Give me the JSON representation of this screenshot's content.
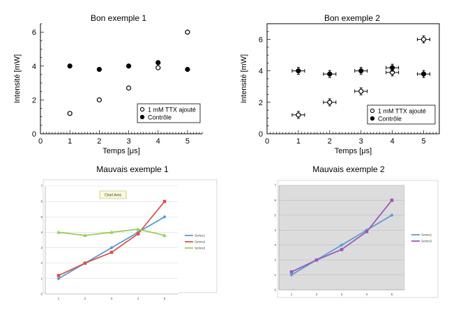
{
  "chart_data": [
    {
      "id": "good1",
      "type": "scatter",
      "title": "Bon exemple 1",
      "xlabel": "Temps [μs]",
      "ylabel": "Intensité [mW]",
      "xlim": [
        0,
        5.5
      ],
      "ylim": [
        0,
        6.5
      ],
      "x_ticks": [
        "0",
        "1",
        "2",
        "3",
        "4",
        "5"
      ],
      "y_ticks": [
        "0",
        "2",
        "4",
        "6"
      ],
      "grid": false,
      "legend_position": "bottom-right",
      "error_bars": false,
      "series": [
        {
          "name": "1 mM TTX ajouté",
          "marker": "open-circle",
          "color": "#000000",
          "x": [
            1,
            2,
            3,
            4,
            5
          ],
          "y": [
            1.2,
            2.0,
            2.7,
            3.9,
            6.0
          ]
        },
        {
          "name": "Contrôle",
          "marker": "filled-circle",
          "color": "#000000",
          "x": [
            1,
            2,
            3,
            4,
            5
          ],
          "y": [
            4.0,
            3.8,
            4.0,
            4.2,
            3.8
          ]
        }
      ]
    },
    {
      "id": "good2",
      "type": "scatter",
      "title": "Bon exemple 2",
      "xlabel": "Temps [μs]",
      "ylabel": "Intensité [mW]",
      "xlim": [
        0,
        5.5
      ],
      "ylim": [
        0,
        7
      ],
      "x_ticks": [
        "0",
        "1",
        "2",
        "3",
        "4",
        "5"
      ],
      "y_ticks": [
        "0",
        "2",
        "4",
        "6"
      ],
      "grid": false,
      "legend_position": "bottom-right",
      "error_bars": true,
      "series": [
        {
          "name": "1 mM TTX ajouté",
          "marker": "open-circle",
          "color": "#000000",
          "x": [
            1,
            2,
            3,
            4,
            5
          ],
          "y": [
            1.2,
            2.0,
            2.7,
            3.9,
            6.0
          ]
        },
        {
          "name": "Contrôle",
          "marker": "filled-circle",
          "color": "#000000",
          "x": [
            1,
            2,
            3,
            4,
            5
          ],
          "y": [
            4.0,
            3.8,
            4.0,
            4.2,
            3.8
          ]
        }
      ]
    },
    {
      "id": "bad1",
      "type": "line",
      "title": "Mauvais exemple 1",
      "annotation": "Chart Area",
      "xlim": [
        0.5,
        5.5
      ],
      "ylim": [
        0,
        7
      ],
      "x_ticks": [
        "1",
        "2",
        "3",
        "4",
        "5"
      ],
      "y_ticks": [
        "0",
        "1",
        "2",
        "3",
        "4",
        "5",
        "6",
        "7"
      ],
      "grid": true,
      "legend_position": "right",
      "background": "#ffffff",
      "series": [
        {
          "name": "Series1",
          "color": "#5b9bd5",
          "x": [
            1,
            2,
            3,
            4,
            5
          ],
          "y": [
            1.0,
            2.0,
            3.0,
            4.0,
            5.0
          ]
        },
        {
          "name": "Series2",
          "color": "#d9534f",
          "x": [
            1,
            2,
            3,
            4,
            5
          ],
          "y": [
            1.2,
            2.0,
            2.7,
            3.9,
            6.0
          ]
        },
        {
          "name": "Series3",
          "color": "#9acd5a",
          "x": [
            1,
            2,
            3,
            4,
            5
          ],
          "y": [
            4.0,
            3.8,
            4.0,
            4.2,
            3.8
          ]
        }
      ]
    },
    {
      "id": "bad2",
      "type": "line",
      "title": "Mauvais exemple 2",
      "xlim": [
        0.5,
        5.5
      ],
      "ylim": [
        0,
        7
      ],
      "x_ticks": [
        "1",
        "2",
        "3",
        "4",
        "5"
      ],
      "y_ticks": [
        "0",
        "1",
        "2",
        "3",
        "4",
        "5",
        "6",
        "7"
      ],
      "grid": true,
      "legend_position": "right",
      "background": "#dcdcdc",
      "series": [
        {
          "name": "Series1",
          "color": "#5b9bd5",
          "x": [
            1,
            2,
            3,
            4,
            5
          ],
          "y": [
            1.0,
            2.0,
            3.0,
            4.0,
            5.0
          ]
        },
        {
          "name": "Series2",
          "color": "#9b59b6",
          "x": [
            1,
            2,
            3,
            4,
            5
          ],
          "y": [
            1.2,
            2.0,
            2.7,
            3.9,
            6.0
          ]
        }
      ]
    }
  ]
}
